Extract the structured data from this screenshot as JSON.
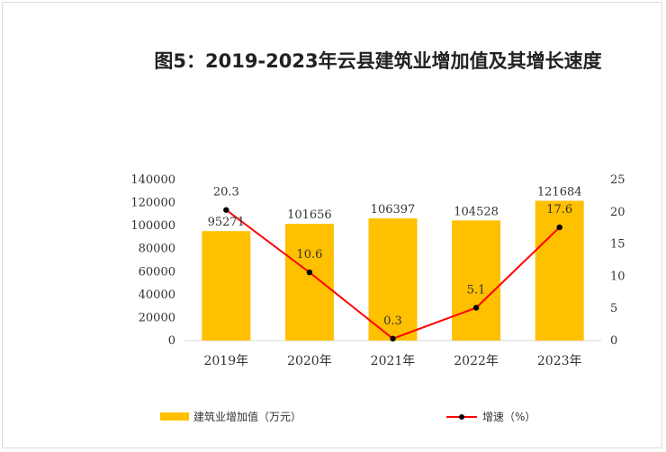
{
  "title": "图5：2019-2023年云县建筑业增加值及其增长速度",
  "chart_data": {
    "type": "bar",
    "categories": [
      "2019年",
      "2020年",
      "2021年",
      "2022年",
      "2023年"
    ],
    "series": [
      {
        "name": "建筑业增加值（万元）",
        "type": "bar",
        "axis": "left",
        "color": "#FFC000",
        "values": [
          95271,
          101656,
          106397,
          104528,
          121684
        ],
        "labels": [
          "95271",
          "101656",
          "106397",
          "104528",
          "121684"
        ]
      },
      {
        "name": "增速（%）",
        "type": "line",
        "axis": "right",
        "color": "#FF0000",
        "marker_color": "#000000",
        "values": [
          20.3,
          10.6,
          0.3,
          5.1,
          17.6
        ],
        "labels": [
          "20.3",
          "10.6",
          "0.3",
          "5.1",
          "17.6"
        ]
      }
    ],
    "y_left": {
      "min": 0,
      "max": 140000,
      "ticks": [
        "0",
        "20000",
        "40000",
        "60000",
        "80000",
        "100000",
        "120000",
        "140000"
      ]
    },
    "y_right": {
      "min": 0,
      "max": 25,
      "ticks": [
        "0",
        "5",
        "10",
        "15",
        "20",
        "25"
      ]
    },
    "grid": false,
    "legend": "bottom"
  }
}
